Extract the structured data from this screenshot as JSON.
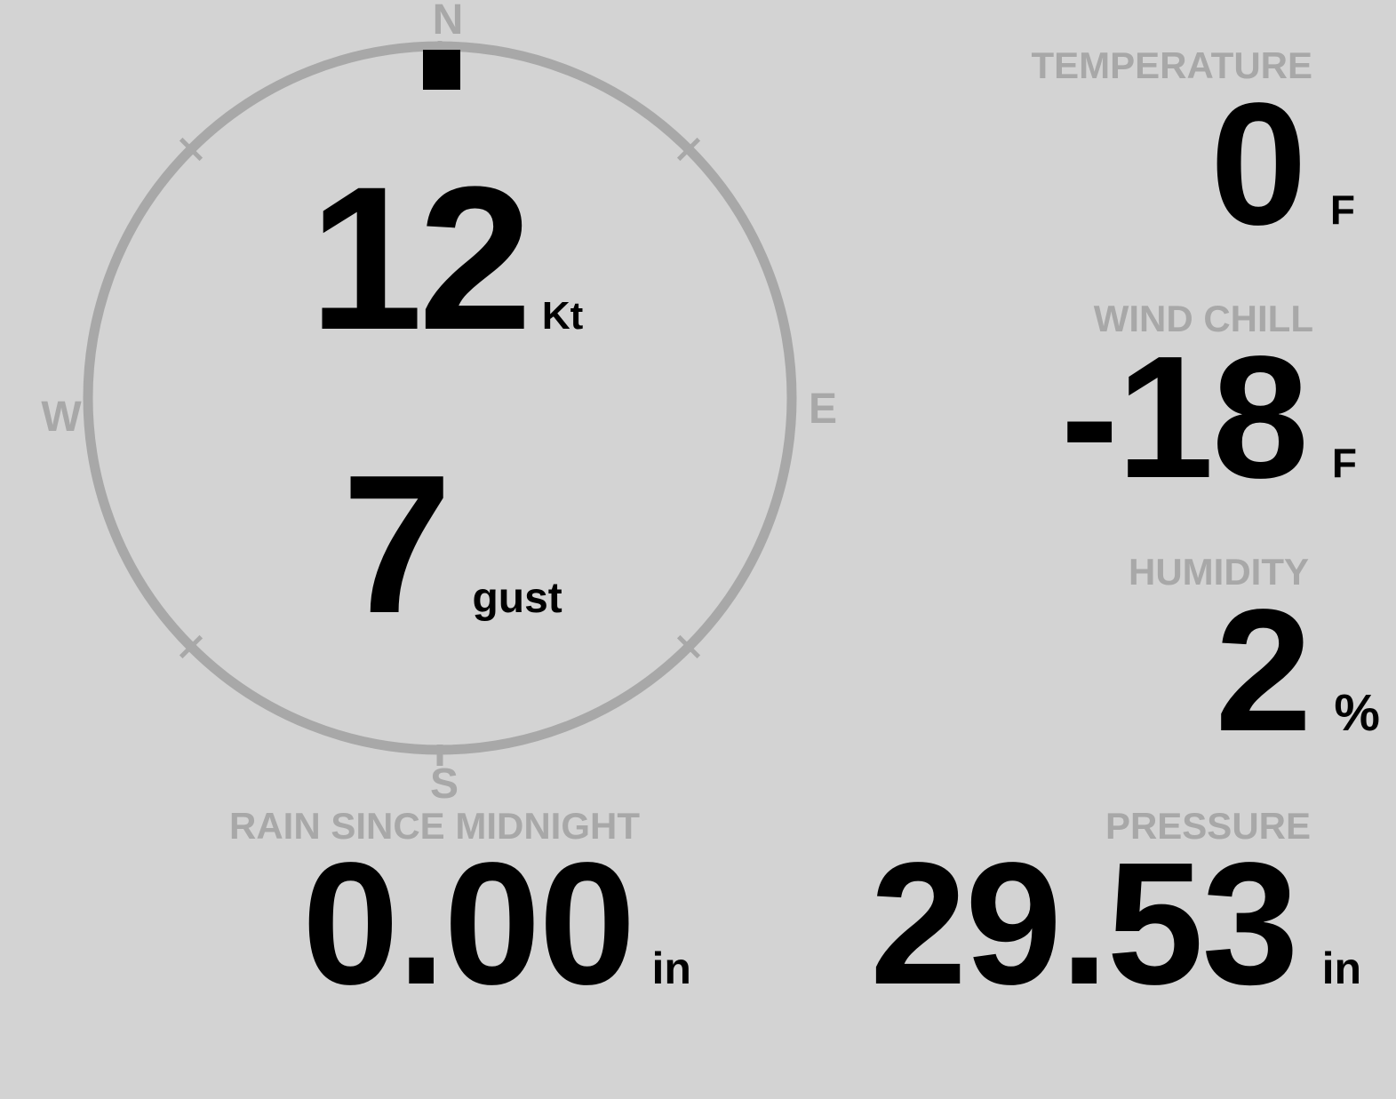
{
  "colors": {
    "background": "#d3d3d3",
    "muted": "#a8a8a8",
    "value": "#000000"
  },
  "compass": {
    "cardinals": {
      "north": "N",
      "east": "E",
      "south": "S",
      "west": "W"
    },
    "wind_speed": {
      "value": "12",
      "unit": "Kt"
    },
    "wind_gust": {
      "value": "7",
      "unit": "gust"
    },
    "direction": "N",
    "direction_degrees": 0
  },
  "metrics": {
    "temperature": {
      "label": "TEMPERATURE",
      "value": "0",
      "unit": "F"
    },
    "wind_chill": {
      "label": "WIND CHILL",
      "value": "-18",
      "unit": "F"
    },
    "humidity": {
      "label": "HUMIDITY",
      "value": "2",
      "unit": "%"
    },
    "rain_since_midnight": {
      "label": "RAIN SINCE MIDNIGHT",
      "value": "0.00",
      "unit": "in"
    },
    "pressure": {
      "label": "PRESSURE",
      "value": "29.53",
      "unit": "in"
    }
  }
}
